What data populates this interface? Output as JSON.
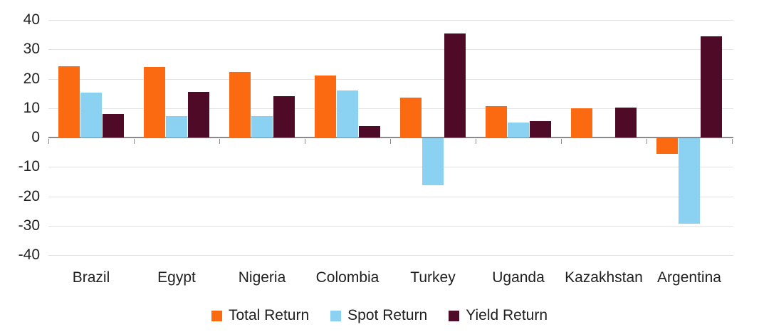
{
  "chart_data": {
    "type": "bar",
    "categories": [
      "Brazil",
      "Egypt",
      "Nigeria",
      "Colombia",
      "Turkey",
      "Uganda",
      "Kazakhstan",
      "Argentina"
    ],
    "series": [
      {
        "name": "Total Return",
        "color": "#FB6A10",
        "values": [
          24.3,
          24.0,
          22.3,
          21.0,
          13.5,
          10.7,
          10.0,
          -5.3
        ]
      },
      {
        "name": "Spot Return",
        "color": "#8AD1F2",
        "values": [
          15.3,
          7.3,
          7.3,
          16.1,
          -16.0,
          5.2,
          0,
          -29.0
        ]
      },
      {
        "name": "Yield Return",
        "color": "#4F0A28",
        "values": [
          7.9,
          15.6,
          14.0,
          4.0,
          35.3,
          5.5,
          10.2,
          34.5
        ]
      }
    ],
    "ylim": [
      -40,
      40
    ],
    "yticks": [
      40,
      30,
      20,
      10,
      0,
      -10,
      -20,
      -30,
      -40
    ],
    "grid": true,
    "legend_position": "bottom"
  },
  "styles": {
    "grid_color": "#E3E3E3",
    "axis_color": "#8A8A8A",
    "text_color": "#1F1F1F",
    "background": "#FFFFFF"
  }
}
